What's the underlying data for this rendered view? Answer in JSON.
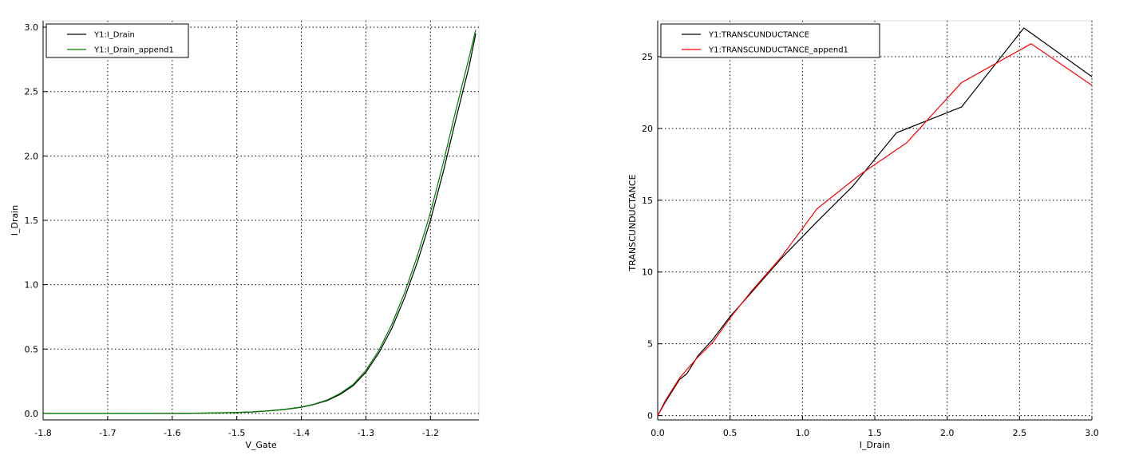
{
  "chart_data": [
    {
      "type": "line",
      "title": "",
      "xlabel": "V_Gate",
      "ylabel": "I_Drain",
      "xlim": [
        -1.8,
        -1.125
      ],
      "ylim": [
        -0.05,
        3.05
      ],
      "xticks": [
        -1.8,
        -1.7,
        -1.6,
        -1.5,
        -1.4,
        -1.3,
        -1.2
      ],
      "xtick_labels": [
        "-1.8",
        "-1.7",
        "-1.6",
        "-1.5",
        "-1.4",
        "-1.3",
        "-1.2"
      ],
      "yticks": [
        0.0,
        0.5,
        1.0,
        1.5,
        2.0,
        2.5,
        3.0
      ],
      "ytick_labels": [
        "0.0",
        "0.5",
        "1.0",
        "1.5",
        "2.0",
        "2.5",
        "3.0"
      ],
      "grid": true,
      "legend_position": "top-left",
      "series": [
        {
          "name": "Y1:I_Drain",
          "color": "#000000",
          "x": [
            -1.8,
            -1.7,
            -1.6,
            -1.55,
            -1.5,
            -1.475,
            -1.45,
            -1.425,
            -1.4,
            -1.38,
            -1.36,
            -1.34,
            -1.32,
            -1.3,
            -1.28,
            -1.26,
            -1.24,
            -1.22,
            -1.2,
            -1.18,
            -1.16,
            -1.14,
            -1.13
          ],
          "y": [
            0.0,
            0.0,
            0.001,
            0.003,
            0.007,
            0.012,
            0.02,
            0.031,
            0.048,
            0.07,
            0.1,
            0.148,
            0.215,
            0.32,
            0.47,
            0.66,
            0.9,
            1.18,
            1.5,
            1.88,
            2.3,
            2.7,
            2.95
          ]
        },
        {
          "name": "Y1:I_Drain_append1",
          "color": "#008000",
          "x": [
            -1.8,
            -1.7,
            -1.6,
            -1.55,
            -1.5,
            -1.475,
            -1.45,
            -1.425,
            -1.4,
            -1.38,
            -1.36,
            -1.34,
            -1.32,
            -1.3,
            -1.28,
            -1.26,
            -1.24,
            -1.22,
            -1.2,
            -1.18,
            -1.16,
            -1.14,
            -1.13
          ],
          "y": [
            0.0,
            0.0,
            0.001,
            0.003,
            0.008,
            0.013,
            0.021,
            0.033,
            0.05,
            0.073,
            0.105,
            0.155,
            0.225,
            0.335,
            0.49,
            0.69,
            0.94,
            1.23,
            1.56,
            1.95,
            2.37,
            2.77,
            2.98
          ]
        }
      ]
    },
    {
      "type": "line",
      "title": "",
      "xlabel": "I_Drain",
      "ylabel": "TRANSCUNDUCTANCE",
      "xlim": [
        0.0,
        3.0
      ],
      "ylim": [
        -0.3,
        27.5
      ],
      "xticks": [
        0.0,
        0.5,
        1.0,
        1.5,
        2.0,
        2.5,
        3.0
      ],
      "xtick_labels": [
        "0.0",
        "0.5",
        "1.0",
        "1.5",
        "2.0",
        "2.5",
        "3.0"
      ],
      "yticks": [
        0,
        5,
        10,
        15,
        20,
        25
      ],
      "ytick_labels": [
        "0",
        "5",
        "10",
        "15",
        "20",
        "25"
      ],
      "grid": true,
      "legend_position": "top-left",
      "series": [
        {
          "name": "Y1:TRANSCUNDUCTANCE",
          "color": "#000000",
          "x": [
            0.0,
            0.05,
            0.1,
            0.15,
            0.2,
            0.28,
            0.38,
            0.5,
            0.65,
            0.85,
            1.1,
            1.35,
            1.65,
            1.85,
            2.1,
            2.53,
            3.0
          ],
          "y": [
            0.0,
            0.9,
            1.7,
            2.5,
            2.9,
            4.2,
            5.3,
            6.9,
            8.6,
            10.9,
            13.5,
            16.0,
            19.7,
            20.5,
            21.5,
            27.0,
            23.6
          ]
        },
        {
          "name": "Y1:TRANSCUNDUCTANCE_append1",
          "color": "#ff0000",
          "x": [
            0.0,
            0.05,
            0.1,
            0.15,
            0.2,
            0.28,
            0.38,
            0.5,
            0.65,
            0.85,
            1.1,
            1.4,
            1.72,
            1.9,
            2.1,
            2.58,
            3.0
          ],
          "y": [
            0.0,
            1.0,
            1.8,
            2.6,
            3.2,
            4.1,
            5.1,
            6.8,
            8.7,
            11.0,
            14.4,
            16.8,
            19.0,
            21.0,
            23.2,
            25.9,
            23.0
          ]
        }
      ]
    }
  ]
}
